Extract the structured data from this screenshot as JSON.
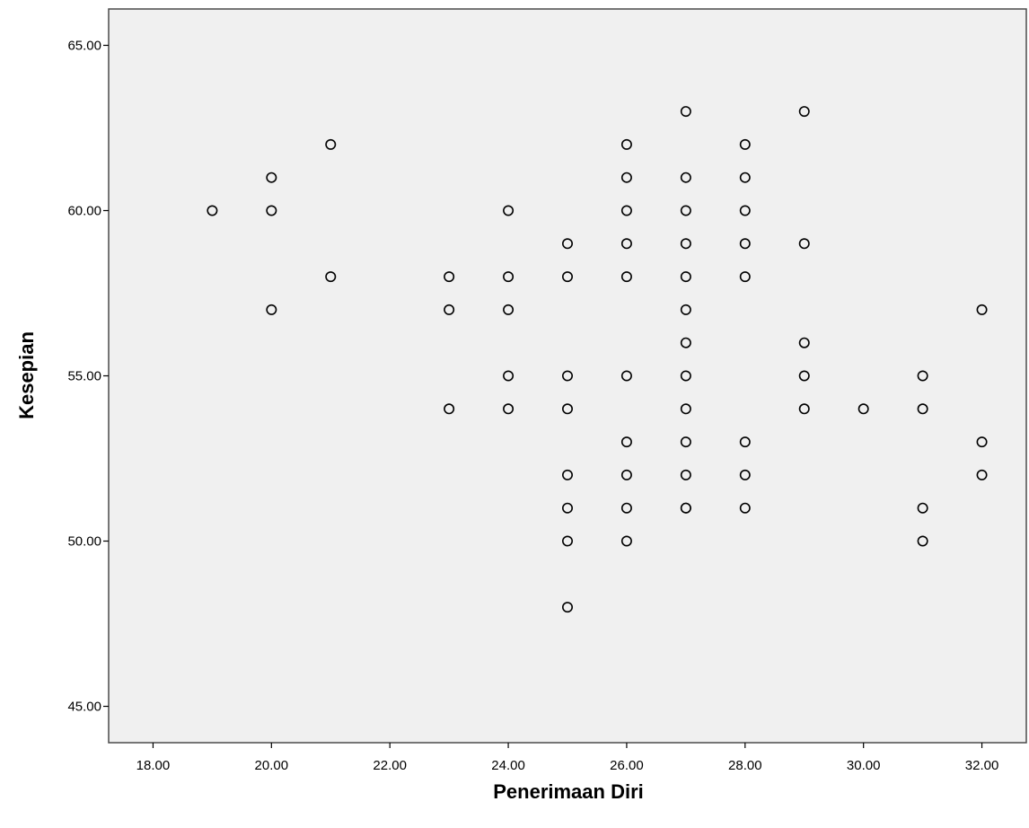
{
  "chart_data": {
    "type": "scatter",
    "title": "",
    "xlabel": "Penerimaan Diri",
    "ylabel": "Kesepian",
    "xlim": [
      17.25,
      32.75
    ],
    "ylim": [
      43.9,
      66.1
    ],
    "x_ticks": [
      "18.00",
      "20.00",
      "22.00",
      "24.00",
      "26.00",
      "28.00",
      "30.00",
      "32.00"
    ],
    "x_tick_values": [
      18,
      20,
      22,
      24,
      26,
      28,
      30,
      32
    ],
    "y_ticks": [
      "45.00",
      "50.00",
      "55.00",
      "60.00",
      "65.00"
    ],
    "y_tick_values": [
      45,
      50,
      55,
      60,
      65
    ],
    "grid": false,
    "legend": "none",
    "colors": {
      "plot_background": "#f0f0f0",
      "frame": "#4a4a4a",
      "marker_stroke": "#000000",
      "marker_fill": "#f0f0f0"
    },
    "series": [
      {
        "x": [
          19,
          20,
          20,
          20,
          21,
          21,
          23,
          23,
          23,
          24,
          24,
          24,
          24,
          24,
          25,
          25,
          25,
          25,
          25,
          25,
          25,
          25,
          26,
          26,
          26,
          26,
          26,
          26,
          26,
          26,
          26,
          26,
          27,
          27,
          27,
          27,
          27,
          27,
          27,
          27,
          27,
          27,
          27,
          27,
          27,
          28,
          28,
          28,
          28,
          28,
          28,
          28,
          28,
          29,
          29,
          29,
          29,
          29,
          30,
          31,
          31,
          31,
          31,
          32,
          32,
          32
        ],
        "y": [
          60,
          61,
          60,
          57,
          62,
          58,
          58,
          57,
          54,
          60,
          58,
          57,
          55,
          54,
          59,
          58,
          55,
          54,
          52,
          51,
          50,
          48,
          62,
          61,
          60,
          59,
          58,
          55,
          53,
          52,
          51,
          50,
          63,
          61,
          60,
          59,
          58,
          57,
          56,
          55,
          54,
          53,
          52,
          51,
          51,
          62,
          61,
          60,
          59,
          58,
          53,
          52,
          51,
          63,
          59,
          56,
          55,
          54,
          54,
          55,
          54,
          51,
          50,
          57,
          53,
          52
        ]
      }
    ]
  }
}
